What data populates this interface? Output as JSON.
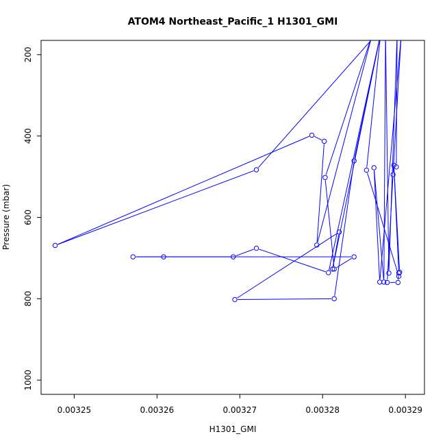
{
  "chart_data": {
    "type": "line",
    "title": "ATOM4 Northeast_Pacific_1 H1301_GMI",
    "xlabel": "H1301_GMI",
    "ylabel": "Pressure (mbar)",
    "xlim": [
      0.003246,
      0.0032923
    ],
    "ylim": [
      1035,
      165
    ],
    "y_reversed": true,
    "grid": false,
    "line_color": "#0000ff",
    "x_ticks": [
      0.00325,
      0.00326,
      0.00327,
      0.00328,
      0.00329
    ],
    "x_tick_labels": [
      "0.00325",
      "0.00326",
      "0.00327",
      "0.00328",
      "0.00329"
    ],
    "y_ticks": [
      200,
      400,
      600,
      800,
      1000
    ],
    "y_tick_labels": [
      "200",
      "400",
      "600",
      "800",
      "1000"
    ],
    "series": [
      {
        "points": [
          [
            0.0032865,
            150
          ],
          [
            0.003272,
            483
          ],
          [
            0.0032477,
            669
          ],
          [
            0.0032787,
            398
          ],
          [
            0.0032802,
            413
          ],
          [
            0.0032793,
            668
          ],
          [
            0.003286,
            150
          ],
          [
            0.0032803,
            502
          ],
          [
            0.0032814,
            727
          ],
          [
            0.0032838,
            697
          ],
          [
            0.0032571,
            697
          ],
          [
            0.0032608,
            697
          ],
          [
            0.0032692,
            697
          ],
          [
            0.003272,
            676
          ],
          [
            0.0032807,
            736
          ],
          [
            0.003287,
            150
          ],
          [
            0.0032838,
            461
          ],
          [
            0.0032814,
            800
          ],
          [
            0.0032694,
            802
          ],
          [
            0.003282,
            636
          ],
          [
            0.0032812,
            727
          ],
          [
            0.003287,
            150
          ],
          [
            0.0032853,
            484
          ],
          [
            0.0032892,
            745
          ],
          [
            0.0032893,
            735
          ],
          [
            0.0032886,
            472
          ],
          [
            0.0032892,
            737
          ],
          [
            0.0032891,
            760
          ],
          [
            0.0032878,
            760
          ],
          [
            0.0032885,
            495
          ],
          [
            0.0032895,
            150
          ],
          [
            0.0032869,
            759
          ],
          [
            0.0032862,
            478
          ],
          [
            0.0032874,
            759
          ],
          [
            0.0032876,
            150
          ],
          [
            0.003288,
            737
          ],
          [
            0.003289,
            150
          ],
          [
            0.0032889,
            476
          ]
        ]
      }
    ]
  }
}
